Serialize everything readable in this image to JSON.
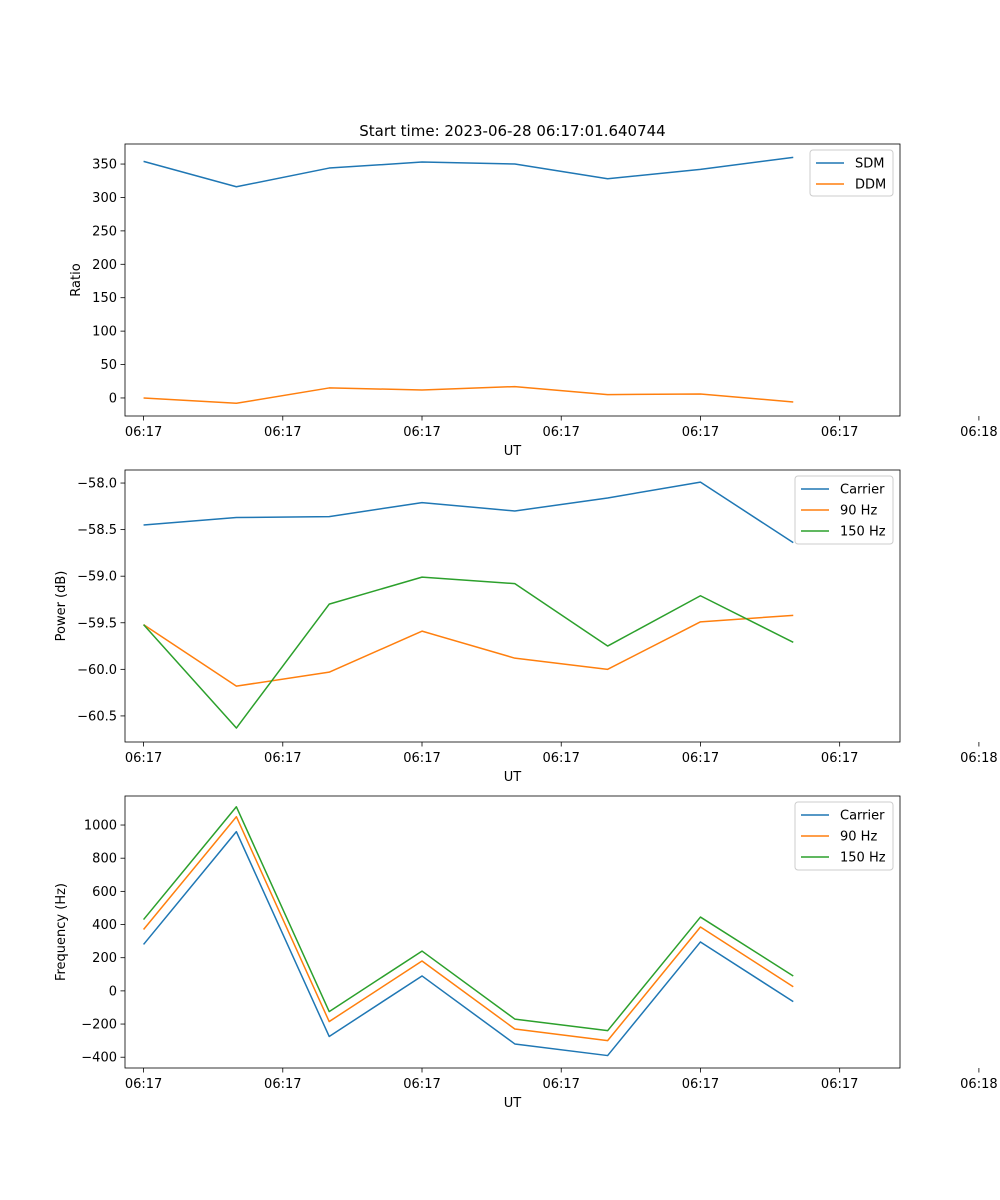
{
  "figure": {
    "title": "Start time: 2023-06-28 06:17:01.640744"
  },
  "chart_data": [
    {
      "type": "line",
      "title": "Start time: 2023-06-28 06:17:01.640744",
      "xlabel": "UT",
      "ylabel": "Ratio",
      "x": [
        1,
        2,
        3,
        4,
        5,
        6,
        7,
        8
      ],
      "xlim": [
        0.8,
        9.15
      ],
      "x_ticks": [
        1,
        2.5,
        4,
        5.5,
        7,
        8.5,
        10
      ],
      "x_tick_labels": [
        "06:17",
        "06:17",
        "06:17",
        "06:17",
        "06:17",
        "06:17",
        "06:18"
      ],
      "ylim": [
        -27,
        380
      ],
      "y_ticks": [
        0,
        50,
        100,
        150,
        200,
        250,
        300,
        350
      ],
      "y_tick_labels": [
        "0",
        "50",
        "100",
        "150",
        "200",
        "250",
        "300",
        "350"
      ],
      "legend_position": "top-right",
      "series": [
        {
          "name": "SDM",
          "color": "#1f77b4",
          "values": [
            354,
            316,
            344,
            353,
            350,
            328,
            342,
            360
          ]
        },
        {
          "name": "DDM",
          "color": "#ff7f0e",
          "values": [
            0,
            -8,
            15,
            12,
            17,
            5,
            6,
            -6
          ]
        }
      ]
    },
    {
      "type": "line",
      "xlabel": "UT",
      "ylabel": "Power (dB)",
      "x": [
        1,
        2,
        3,
        4,
        5,
        6,
        7,
        8
      ],
      "xlim": [
        0.8,
        9.15
      ],
      "x_ticks": [
        1,
        2.5,
        4,
        5.5,
        7,
        8.5,
        10
      ],
      "x_tick_labels": [
        "06:17",
        "06:17",
        "06:17",
        "06:17",
        "06:17",
        "06:17",
        "06:18"
      ],
      "ylim": [
        -60.78,
        -57.86
      ],
      "y_ticks": [
        -60.5,
        -60.0,
        -59.5,
        -59.0,
        -58.5,
        -58.0
      ],
      "y_tick_labels": [
        "−60.5",
        "−60.0",
        "−59.5",
        "−59.0",
        "−58.5",
        "−58.0"
      ],
      "legend_position": "top-right",
      "series": [
        {
          "name": "Carrier",
          "color": "#1f77b4",
          "values": [
            -58.45,
            -58.37,
            -58.36,
            -58.21,
            -58.3,
            -58.16,
            -57.99,
            -58.64
          ]
        },
        {
          "name": "90 Hz",
          "color": "#ff7f0e",
          "values": [
            -59.52,
            -60.18,
            -60.03,
            -59.59,
            -59.88,
            -60.0,
            -59.49,
            -59.42
          ]
        },
        {
          "name": "150 Hz",
          "color": "#2ca02c",
          "values": [
            -59.52,
            -60.63,
            -59.3,
            -59.01,
            -59.08,
            -59.75,
            -59.21,
            -59.71
          ]
        }
      ]
    },
    {
      "type": "line",
      "xlabel": "UT",
      "ylabel": "Frequency (Hz)",
      "x": [
        1,
        2,
        3,
        4,
        5,
        6,
        7,
        8
      ],
      "xlim": [
        0.8,
        9.15
      ],
      "x_ticks": [
        1,
        2.5,
        4,
        5.5,
        7,
        8.5,
        10
      ],
      "x_tick_labels": [
        "06:17",
        "06:17",
        "06:17",
        "06:17",
        "06:17",
        "06:17",
        "06:18"
      ],
      "ylim": [
        -465,
        1175
      ],
      "y_ticks": [
        -400,
        -200,
        0,
        200,
        400,
        600,
        800,
        1000
      ],
      "y_tick_labels": [
        "−400",
        "−200",
        "0",
        "200",
        "400",
        "600",
        "800",
        "1000"
      ],
      "legend_position": "top-right",
      "series": [
        {
          "name": "Carrier",
          "color": "#1f77b4",
          "values": [
            280,
            960,
            -275,
            90,
            -320,
            -390,
            295,
            -65
          ]
        },
        {
          "name": "90 Hz",
          "color": "#ff7f0e",
          "values": [
            370,
            1050,
            -185,
            180,
            -230,
            -300,
            385,
            25
          ]
        },
        {
          "name": "150 Hz",
          "color": "#2ca02c",
          "values": [
            430,
            1110,
            -125,
            240,
            -170,
            -240,
            445,
            90
          ]
        }
      ]
    }
  ]
}
